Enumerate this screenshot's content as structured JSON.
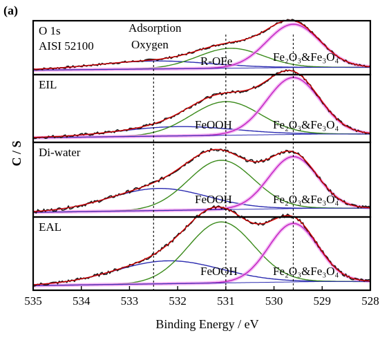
{
  "chart_data": {
    "type": "line",
    "figure_label": "(a)",
    "xlabel": "Binding Energy / eV",
    "ylabel": "C / S",
    "x_reversed": true,
    "xlim": [
      535,
      528
    ],
    "x_ticks": [
      "535",
      "534",
      "533",
      "532",
      "531",
      "530",
      "529",
      "528"
    ],
    "reference_lines_ev": [
      532.5,
      531.0,
      529.6
    ],
    "colors": {
      "raw_data": "#1a1a1a",
      "envelope_fit": "#d10000",
      "adsorption_oxygen": "#2b2bb0",
      "hydroxide": "#3a8a1a",
      "oxide": "#c020c0",
      "oxide_highlight": "#f0a0f0"
    },
    "panels": [
      {
        "label": "O 1s\nAISI 52100",
        "annotations": [
          "Adsorption\nOxygen",
          "R-OFe",
          "Fe₂O₃&Fe₃O₄"
        ],
        "components": [
          {
            "name": "Adsorption\nOxygen",
            "center_ev": 532.5,
            "fwhm_ev": 2.8,
            "height": 0.18
          },
          {
            "name": "R-OFe",
            "center_ev": 530.9,
            "fwhm_ev": 1.6,
            "height": 0.45
          },
          {
            "name": "Fe₂O₃&Fe₃O₄",
            "center_ev": 529.6,
            "fwhm_ev": 1.3,
            "height": 0.98
          }
        ]
      },
      {
        "label": "EIL",
        "annotations": [
          "FeOOH",
          "Fe₂O₃&Fe₃O₄"
        ],
        "components": [
          {
            "name": "Adsorption\nOxygen",
            "center_ev": 532.0,
            "fwhm_ev": 2.8,
            "height": 0.16
          },
          {
            "name": "FeOOH",
            "center_ev": 531.0,
            "fwhm_ev": 1.7,
            "height": 0.58
          },
          {
            "name": "Fe₂O₃&Fe₃O₄",
            "center_ev": 529.6,
            "fwhm_ev": 1.3,
            "height": 0.98
          }
        ]
      },
      {
        "label": "Di-water",
        "annotations": [
          "FeOOH",
          "Fe₂O₃&Fe₃O₄"
        ],
        "components": [
          {
            "name": "Adsorption\nOxygen",
            "center_ev": 532.4,
            "fwhm_ev": 2.4,
            "height": 0.34
          },
          {
            "name": "FeOOH",
            "center_ev": 531.1,
            "fwhm_ev": 1.6,
            "height": 0.76
          },
          {
            "name": "Fe₂O₃&Fe₃O₄",
            "center_ev": 529.6,
            "fwhm_ev": 1.2,
            "height": 0.8
          }
        ]
      },
      {
        "label": "EAL",
        "annotations": [
          "FeOOH",
          "Fe₂O₃&Fe₃O₄"
        ],
        "components": [
          {
            "name": "Adsorption\nOxygen",
            "center_ev": 532.2,
            "fwhm_ev": 2.6,
            "height": 0.36
          },
          {
            "name": "FeOOH",
            "center_ev": 531.1,
            "fwhm_ev": 1.6,
            "height": 0.96
          },
          {
            "name": "Fe₂O₃&Fe₃O₄",
            "center_ev": 529.6,
            "fwhm_ev": 1.2,
            "height": 0.92
          }
        ]
      }
    ]
  }
}
